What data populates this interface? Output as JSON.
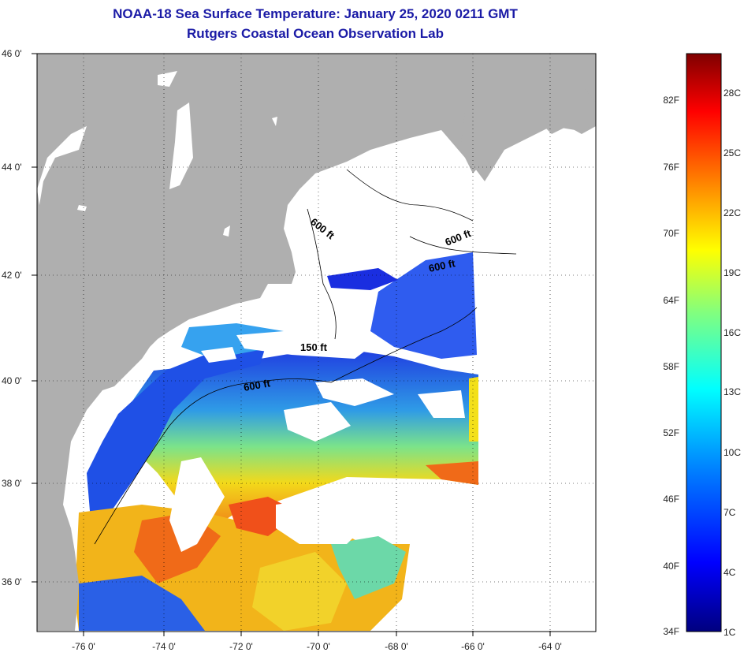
{
  "header": {
    "title": "NOAA-18 Sea Surface Temperature:  January 25, 2020 0211 GMT",
    "subtitle": "Rutgers Coastal Ocean Observation Lab"
  },
  "map": {
    "lat_range": [
      35,
      46
    ],
    "lon_range": [
      -77,
      -62.5
    ],
    "lat_ticks": [
      "46 0'",
      "44 0'",
      "42 0'",
      "40 0'",
      "38 0'",
      "36 0'"
    ],
    "lon_ticks": [
      "-76 0'",
      "-74 0'",
      "-72 0'",
      "-70 0'",
      "-68 0'",
      "-66 0'",
      "-64 0'"
    ],
    "contour_labels": [
      "600 ft",
      "600 ft",
      "600 ft",
      "150 ft",
      "600 ft"
    ],
    "colors": {
      "land": "#afafaf",
      "cloud": "#ffffff",
      "grid": "#000000"
    }
  },
  "colorbar": {
    "fahrenheit_labels": [
      "82F",
      "76F",
      "70F",
      "64F",
      "58F",
      "52F",
      "46F",
      "40F",
      "34F"
    ],
    "celsius_labels": [
      "28C",
      "25C",
      "22C",
      "19C",
      "16C",
      "13C",
      "10C",
      "7C",
      "4C",
      "1C"
    ],
    "colors": [
      "#00007f",
      "#0000ff",
      "#0080ff",
      "#00ffff",
      "#80ff80",
      "#ffff00",
      "#ff8000",
      "#ff0000",
      "#7f0000"
    ]
  }
}
